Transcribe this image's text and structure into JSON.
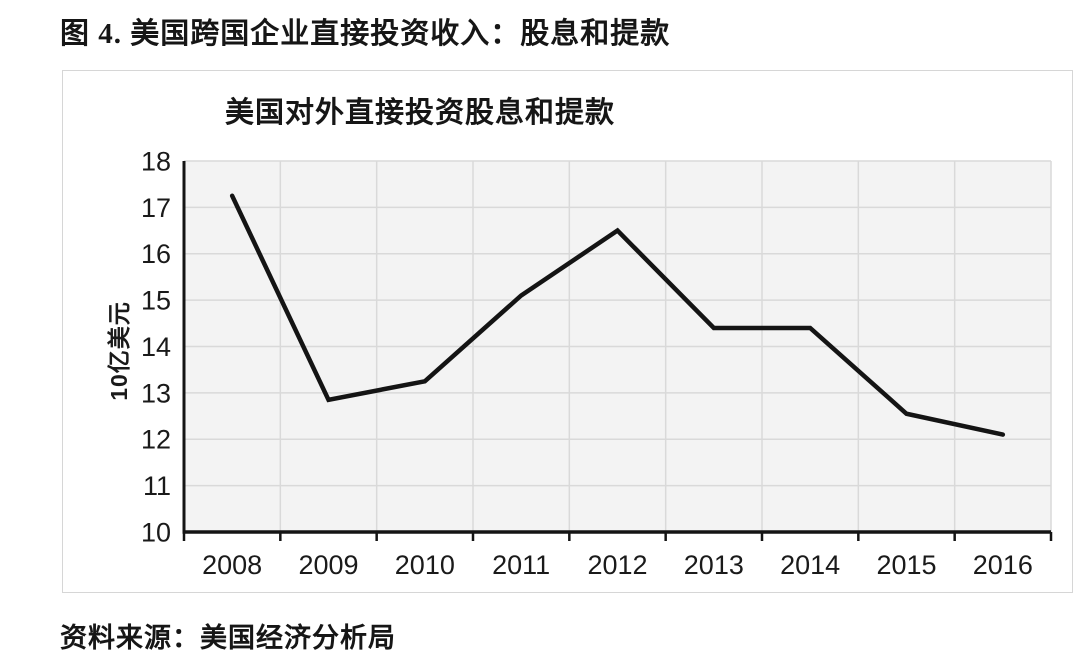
{
  "figure_title": "图 4. 美国跨国企业直接投资收入：股息和提款",
  "source_note": "资料来源：美国经济分析局",
  "chart_data": {
    "type": "line",
    "title": "美国对外直接投资股息和提款",
    "xlabel": "",
    "ylabel": "10亿美元",
    "categories": [
      "2008",
      "2009",
      "2010",
      "2011",
      "2012",
      "2013",
      "2014",
      "2015",
      "2016"
    ],
    "series": [
      {
        "name": "美国对外直接投资股息和提款",
        "values": [
          17.25,
          12.85,
          13.25,
          15.1,
          16.5,
          14.4,
          14.4,
          12.55,
          12.1
        ]
      }
    ],
    "ylim": [
      10,
      18
    ],
    "ytick_step": 1,
    "grid": true,
    "legend": "none",
    "line_color": "#141414",
    "axis_color": "#141414",
    "grid_color": "#d9d9d9",
    "plot_bg": "#f3f3f3",
    "text_color": "#1a1a1a"
  }
}
